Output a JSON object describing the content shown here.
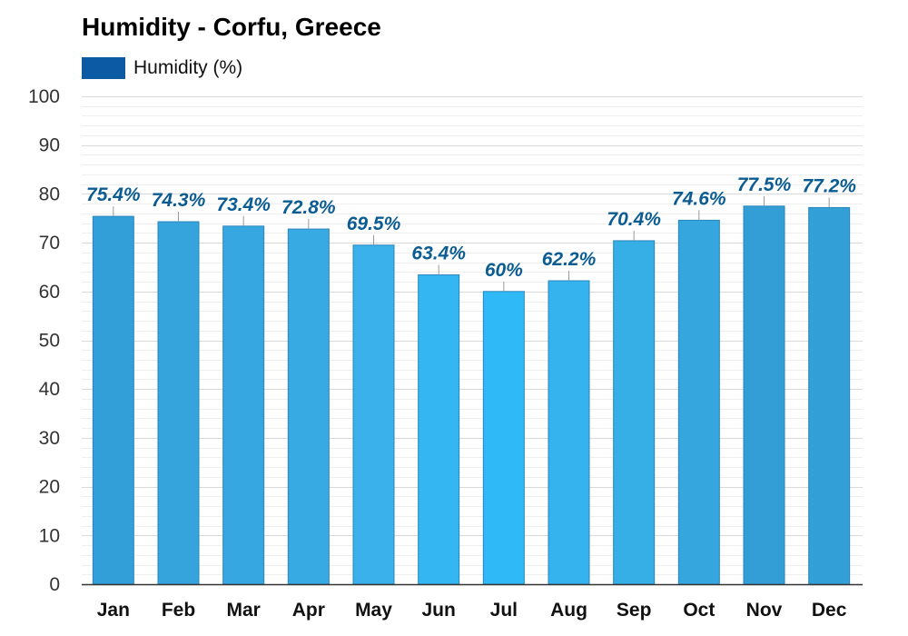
{
  "chart_data": {
    "type": "bar",
    "title": "Humidity - Corfu, Greece",
    "xlabel": "",
    "ylabel": "",
    "legend": {
      "position": "top-left",
      "entries": [
        {
          "label": "Humidity (%)",
          "color": "#0b5aa3"
        }
      ]
    },
    "categories": [
      "Jan",
      "Feb",
      "Mar",
      "Apr",
      "May",
      "Jun",
      "Jul",
      "Aug",
      "Sep",
      "Oct",
      "Nov",
      "Dec"
    ],
    "series": [
      {
        "name": "Humidity (%)",
        "values": [
          75.4,
          74.3,
          73.4,
          72.8,
          69.5,
          63.4,
          60,
          62.2,
          70.4,
          74.6,
          77.5,
          77.2
        ],
        "value_labels": [
          "75.4%",
          "74.3%",
          "73.4%",
          "72.8%",
          "69.5%",
          "63.4%",
          "60%",
          "62.2%",
          "70.4%",
          "74.6%",
          "77.5%",
          "77.2%"
        ],
        "bar_colors": [
          "#339fd8",
          "#35a4dd",
          "#36a7e0",
          "#37aae3",
          "#3ab1ea",
          "#34b6f2",
          "#2fbaf7",
          "#35b3ee",
          "#36aee6",
          "#35a6de",
          "#339ed6",
          "#339fd7"
        ]
      }
    ],
    "ylim": [
      0,
      100
    ],
    "yticks": [
      0,
      10,
      20,
      30,
      40,
      50,
      60,
      70,
      80,
      90,
      100
    ],
    "grid": true,
    "minor_grid_step": 2
  }
}
